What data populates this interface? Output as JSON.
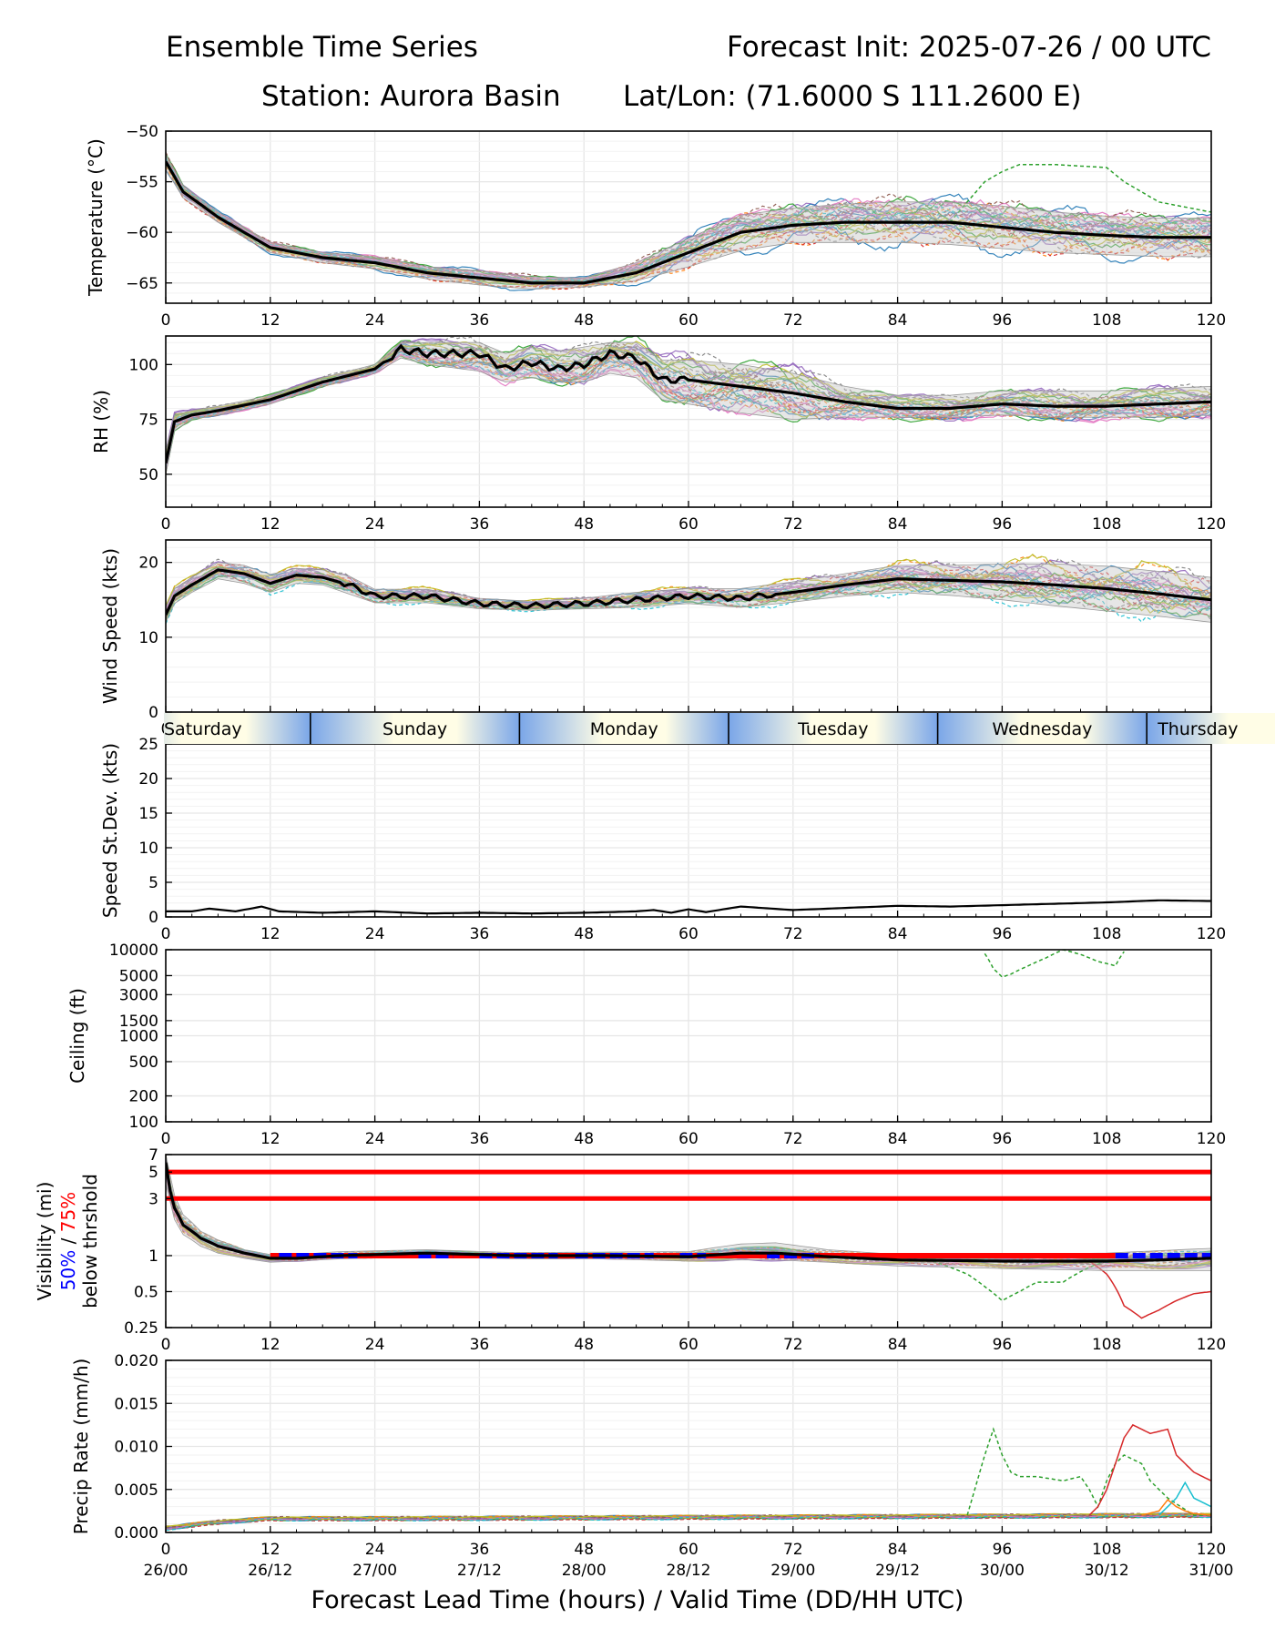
{
  "header": {
    "title": "Ensemble Time Series",
    "init": "Forecast Init: 2025-07-26 / 00 UTC",
    "station": "Station: Aurora Basin",
    "latlon": "Lat/Lon: (71.6000 S 111.2600 E)"
  },
  "colors": {
    "ensemble": [
      "#1f77b4",
      "#ff7f0e",
      "#2ca02c",
      "#d62728",
      "#9467bd",
      "#8c564b",
      "#e377c2",
      "#7f7f7f",
      "#bcbd22",
      "#17becf"
    ],
    "mean": "#000000",
    "spread": "#c8c8c8",
    "vis_50": "#0000ff",
    "vis_75": "#ff0000",
    "day_light": "#fffde6",
    "day_dark": "#7aa6e8"
  },
  "chart_data": [
    {
      "id": "temp",
      "type": "line",
      "ylabel": "Temperature (°C)",
      "ylim": [
        -67,
        -50
      ],
      "yticks": [
        -50,
        -55,
        -60,
        -65
      ],
      "xlim": [
        0,
        120
      ],
      "xticks": [
        0,
        12,
        24,
        36,
        48,
        60,
        72,
        84,
        96,
        108,
        120
      ],
      "grid": true,
      "ensemble_members": 30,
      "mean": {
        "x": [
          0,
          2,
          6,
          12,
          18,
          24,
          30,
          36,
          42,
          48,
          54,
          60,
          66,
          72,
          78,
          84,
          90,
          96,
          102,
          108,
          114,
          120
        ],
        "y": [
          -53,
          -56,
          -58.5,
          -61.5,
          -62.5,
          -63,
          -64,
          -64.5,
          -65,
          -65,
          -64,
          -62,
          -60,
          -59.3,
          -59,
          -59,
          -59,
          -59.5,
          -60,
          -60.3,
          -60.5,
          -60.5
        ]
      },
      "spread": {
        "lower": [
          -53.8,
          -56.6,
          -59,
          -62,
          -63,
          -63.6,
          -64.6,
          -65.2,
          -65.6,
          -65.4,
          -64.8,
          -63.4,
          -61.8,
          -61,
          -61,
          -61,
          -61.2,
          -61.6,
          -62,
          -62.2,
          -62.4,
          -62.4
        ],
        "upper": [
          -52.3,
          -55.4,
          -58,
          -61,
          -62,
          -62.4,
          -63.4,
          -63.8,
          -64.4,
          -64.5,
          -63,
          -60.6,
          -58.3,
          -57.6,
          -57.2,
          -57,
          -57,
          -57.4,
          -58,
          -58.4,
          -58.6,
          -58.6
        ]
      },
      "notable_member": {
        "color_index": 2,
        "x": [
          90,
          94,
          96,
          98,
          102,
          108,
          110,
          114,
          120
        ],
        "y": [
          -59,
          -55,
          -54,
          -53.3,
          -53.3,
          -53.6,
          -55,
          -57,
          -58
        ]
      }
    },
    {
      "id": "rh",
      "type": "line",
      "ylabel": "RH (%)",
      "ylim": [
        35,
        113
      ],
      "yticks": [
        50,
        75,
        100
      ],
      "xlim": [
        0,
        120
      ],
      "xticks": [
        0,
        12,
        24,
        36,
        48,
        60,
        72,
        84,
        96,
        108,
        120
      ],
      "grid": true,
      "ensemble_members": 30,
      "mean": {
        "x": [
          0,
          1,
          3,
          6,
          12,
          18,
          24,
          27,
          30,
          36,
          39,
          42,
          45,
          48,
          51,
          54,
          57,
          60,
          66,
          72,
          78,
          84,
          90,
          96,
          102,
          108,
          114,
          120
        ],
        "y": [
          55,
          74,
          77,
          79,
          84,
          92,
          98,
          107,
          105,
          105,
          98,
          101,
          98,
          100,
          105,
          103,
          93,
          93,
          90,
          87,
          83,
          80,
          80,
          82,
          81,
          81,
          82,
          83
        ]
      },
      "spread": {
        "lower": [
          50,
          70,
          75,
          77,
          82,
          90,
          96,
          103,
          100,
          97,
          92,
          94,
          92,
          92,
          96,
          94,
          84,
          82,
          78,
          75,
          76,
          76,
          76,
          77,
          76,
          76,
          76,
          77
        ],
        "upper": [
          60,
          77,
          79,
          81,
          86,
          94,
          100,
          110,
          110,
          110,
          105,
          108,
          106,
          108,
          110,
          110,
          102,
          102,
          100,
          96,
          90,
          86,
          86,
          88,
          88,
          88,
          89,
          90
        ]
      }
    },
    {
      "id": "wind",
      "type": "line",
      "ylabel": "Wind Speed (kts)",
      "ylim": [
        0,
        23
      ],
      "yticks": [
        0,
        10,
        20
      ],
      "xlim": [
        0,
        120
      ],
      "xticks": [
        0,
        12,
        24,
        36,
        48,
        60,
        72,
        84,
        96,
        108,
        120
      ],
      "grid": true,
      "ensemble_members": 30,
      "mean": {
        "x": [
          0,
          1,
          3,
          6,
          9,
          12,
          15,
          18,
          21,
          24,
          30,
          36,
          42,
          48,
          54,
          60,
          66,
          72,
          78,
          84,
          90,
          96,
          102,
          108,
          114,
          120
        ],
        "y": [
          13,
          15.5,
          17,
          19,
          18.5,
          17.2,
          18.3,
          18,
          17,
          15.5,
          15.5,
          14.5,
          14.2,
          14.5,
          15,
          15.5,
          15.2,
          16,
          17,
          17.8,
          17.6,
          17.4,
          17,
          16.5,
          15.8,
          15
        ]
      },
      "spread": {
        "lower": [
          12,
          14.5,
          16,
          17.8,
          17.2,
          16,
          17.2,
          17,
          15.8,
          14.6,
          14.6,
          13.8,
          13.6,
          13.8,
          14,
          14.5,
          14,
          14.7,
          15.5,
          16,
          15.6,
          15,
          14.2,
          13.5,
          12.8,
          12
        ]
      },
      "spread_upper": [
        14,
        16.5,
        18,
        20,
        19.6,
        18.4,
        19.2,
        19,
        18.2,
        16.4,
        16.4,
        15.2,
        14.8,
        15.2,
        16,
        16.5,
        16.5,
        17.4,
        18.5,
        19.6,
        19.6,
        19.8,
        19.8,
        19.5,
        18.8,
        18
      ]
    },
    {
      "id": "days",
      "type": "table",
      "labels": [
        "Saturday",
        "Sunday",
        "Monday",
        "Tuesday",
        "Wednesday",
        "Thursday"
      ]
    },
    {
      "id": "stdev",
      "type": "line",
      "ylabel": "Speed St.Dev. (kts)",
      "ylim": [
        0,
        25
      ],
      "yticks": [
        0,
        5,
        10,
        15,
        20,
        25
      ],
      "xlim": [
        0,
        120
      ],
      "xticks": [
        0,
        12,
        24,
        36,
        48,
        60,
        72,
        84,
        96,
        108,
        120
      ],
      "grid": true,
      "mean": {
        "x": [
          0,
          3,
          5,
          8,
          11,
          13,
          18,
          24,
          30,
          36,
          42,
          48,
          54,
          56,
          58,
          60,
          62,
          64,
          66,
          72,
          78,
          84,
          90,
          96,
          102,
          108,
          114,
          120
        ],
        "y": [
          0.8,
          0.8,
          1.2,
          0.8,
          1.5,
          0.8,
          0.6,
          0.8,
          0.5,
          0.6,
          0.5,
          0.6,
          0.8,
          1.0,
          0.6,
          1.1,
          0.7,
          1.1,
          1.5,
          1.0,
          1.3,
          1.6,
          1.5,
          1.7,
          1.9,
          2.1,
          2.4,
          2.3
        ]
      }
    },
    {
      "id": "ceiling",
      "type": "line",
      "ylabel": "Ceiling (ft)",
      "scale": "log",
      "ylim": [
        100,
        10000
      ],
      "yticks": [
        100,
        200,
        500,
        1000,
        1500,
        3000,
        5000,
        10000
      ],
      "xlim": [
        0,
        120
      ],
      "xticks": [
        0,
        12,
        24,
        36,
        48,
        60,
        72,
        84,
        96,
        108,
        120
      ],
      "grid": true,
      "notable_member": {
        "color_index": 2,
        "x": [
          94,
          95,
          96,
          97,
          99,
          101,
          103,
          105,
          107,
          109,
          110
        ],
        "y": [
          9000,
          6000,
          4800,
          5200,
          6500,
          8000,
          10000,
          8800,
          7300,
          6500,
          9500
        ]
      }
    },
    {
      "id": "vis",
      "type": "line",
      "ylabel": "Visibility (mi)",
      "ylabel_50": "50%",
      "ylabel_sep": " / ",
      "ylabel_75": "75%",
      "ylabel2": "below thrshold",
      "scale": "log",
      "ylim": [
        0.25,
        7
      ],
      "yticks": [
        0.25,
        0.5,
        1,
        3,
        5,
        7
      ],
      "xlim": [
        0,
        120
      ],
      "xticks": [
        0,
        12,
        24,
        36,
        48,
        60,
        72,
        84,
        96,
        108,
        120
      ],
      "grid": true,
      "thresholds": [
        5,
        3,
        1
      ],
      "ensemble_members": 30,
      "mean": {
        "x": [
          0,
          0.5,
          1,
          2,
          4,
          6,
          9,
          12,
          15,
          20,
          30,
          40,
          50,
          60,
          66,
          70,
          76,
          84,
          96,
          108,
          114,
          120
        ],
        "y": [
          6,
          3.5,
          2.5,
          1.8,
          1.4,
          1.2,
          1.05,
          0.95,
          0.95,
          1.0,
          1.05,
          1.0,
          1.0,
          0.98,
          1.05,
          1.05,
          0.98,
          0.92,
          0.9,
          0.9,
          0.92,
          0.95
        ]
      },
      "spread": {
        "lower": [
          4,
          2.6,
          2,
          1.5,
          1.2,
          1.05,
          0.95,
          0.88,
          0.9,
          0.94,
          0.98,
          0.94,
          0.94,
          0.9,
          0.92,
          0.92,
          0.88,
          0.82,
          0.78,
          0.75,
          0.75,
          0.75
        ],
        "upper": [
          7,
          4.6,
          3.2,
          2.2,
          1.6,
          1.35,
          1.12,
          1.02,
          1.02,
          1.08,
          1.12,
          1.06,
          1.07,
          1.08,
          1.25,
          1.28,
          1.12,
          1.02,
          1.02,
          1.05,
          1.1,
          1.15
        ]
      },
      "blue_segments": [
        [
          13,
          22
        ],
        [
          29,
          33
        ],
        [
          36,
          45
        ],
        [
          47,
          56
        ],
        [
          59,
          62
        ],
        [
          69,
          75
        ],
        [
          109,
          120
        ]
      ],
      "red_segments": [
        [
          12,
          109
        ]
      ],
      "notable_member": {
        "color_index": 2,
        "x": [
          88,
          92,
          94,
          96,
          98,
          100,
          103,
          106,
          108
        ],
        "y": [
          0.9,
          0.7,
          0.55,
          0.42,
          0.5,
          0.6,
          0.6,
          0.8,
          0.9
        ]
      },
      "notable_member2": {
        "color_index": 3,
        "x": [
          106,
          108,
          110,
          112,
          114,
          116,
          118,
          120
        ],
        "y": [
          0.9,
          0.7,
          0.38,
          0.3,
          0.35,
          0.42,
          0.48,
          0.5
        ]
      }
    },
    {
      "id": "precip",
      "type": "line",
      "ylabel": "Precip Rate (mm/h)",
      "ylim": [
        0,
        0.02
      ],
      "yticks": [
        0.0,
        0.005,
        0.01,
        0.015,
        0.02
      ],
      "ytick_labels": [
        "0.000",
        "0.005",
        "0.010",
        "0.015",
        "0.020"
      ],
      "xlim": [
        0,
        120
      ],
      "xticks": [
        0,
        12,
        24,
        36,
        48,
        60,
        72,
        84,
        96,
        108,
        120
      ],
      "xtick_valid": [
        "26/00",
        "26/12",
        "27/00",
        "27/12",
        "28/00",
        "28/12",
        "29/00",
        "29/12",
        "30/00",
        "30/12",
        "31/00"
      ],
      "grid": true,
      "ensemble_members": 30,
      "mean": {
        "x": [
          0,
          6,
          12,
          24,
          48,
          72,
          96,
          120
        ],
        "y": [
          0.0005,
          0.0012,
          0.0016,
          0.0016,
          0.0017,
          0.0018,
          0.0019,
          0.002
        ]
      },
      "notable_member": {
        "color_index": 2,
        "x": [
          92,
          94,
          95,
          96,
          97,
          98,
          100,
          103,
          105,
          106,
          107,
          108,
          109,
          110,
          112,
          113,
          115,
          118,
          120
        ],
        "y": [
          0.002,
          0.009,
          0.012,
          0.009,
          0.007,
          0.0065,
          0.0065,
          0.006,
          0.0065,
          0.005,
          0.003,
          0.006,
          0.008,
          0.009,
          0.008,
          0.006,
          0.004,
          0.002,
          0.002
        ]
      },
      "notable_member2": {
        "color_index": 3,
        "x": [
          106,
          107,
          108,
          109,
          110,
          111,
          112,
          113,
          115,
          116,
          117,
          118,
          120
        ],
        "y": [
          0.002,
          0.003,
          0.005,
          0.008,
          0.011,
          0.0125,
          0.012,
          0.0115,
          0.012,
          0.009,
          0.008,
          0.007,
          0.006
        ]
      },
      "notable_member3": {
        "color_index": 9,
        "x": [
          114,
          116,
          117,
          118,
          120
        ],
        "y": [
          0.002,
          0.004,
          0.0058,
          0.004,
          0.003
        ]
      },
      "notable_member4": {
        "color_index": 1,
        "x": [
          112,
          114,
          115,
          116,
          117,
          118,
          120
        ],
        "y": [
          0.002,
          0.0025,
          0.0038,
          0.003,
          0.0025,
          0.0022,
          0.002
        ]
      }
    }
  ],
  "xlabel": "Forecast Lead Time (hours) / Valid Time (DD/HH UTC)"
}
